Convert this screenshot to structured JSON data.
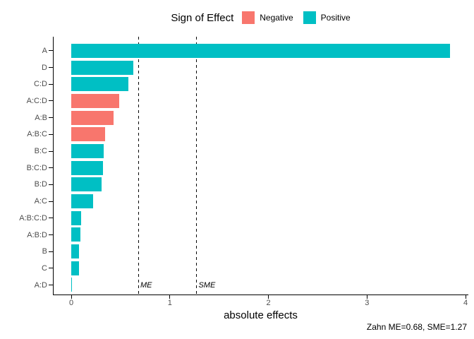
{
  "chart_data": {
    "type": "bar",
    "orientation": "horizontal",
    "title": "",
    "legend": {
      "title": "Sign of Effect",
      "position": "top",
      "entries": [
        {
          "label": "Negative",
          "color": "#F8766D"
        },
        {
          "label": "Positive",
          "color": "#00BFC4"
        }
      ]
    },
    "bars": [
      {
        "label": "A",
        "value": 3.84,
        "sign": "Positive"
      },
      {
        "label": "D",
        "value": 0.63,
        "sign": "Positive"
      },
      {
        "label": "C:D",
        "value": 0.58,
        "sign": "Positive"
      },
      {
        "label": "A:C:D",
        "value": 0.49,
        "sign": "Negative"
      },
      {
        "label": "A:B",
        "value": 0.43,
        "sign": "Negative"
      },
      {
        "label": "A:B:C",
        "value": 0.34,
        "sign": "Negative"
      },
      {
        "label": "B:C",
        "value": 0.33,
        "sign": "Positive"
      },
      {
        "label": "B:C:D",
        "value": 0.32,
        "sign": "Positive"
      },
      {
        "label": "B:D",
        "value": 0.31,
        "sign": "Positive"
      },
      {
        "label": "A:C",
        "value": 0.22,
        "sign": "Positive"
      },
      {
        "label": "A:B:C:D",
        "value": 0.1,
        "sign": "Positive"
      },
      {
        "label": "A:B:D",
        "value": 0.09,
        "sign": "Positive"
      },
      {
        "label": "B",
        "value": 0.08,
        "sign": "Positive"
      },
      {
        "label": "C",
        "value": 0.08,
        "sign": "Positive"
      },
      {
        "label": "A:D",
        "value": 0.01,
        "sign": "Positive"
      }
    ],
    "reference_lines": [
      {
        "label": "ME",
        "value": 0.68
      },
      {
        "label": "SME",
        "value": 1.27
      }
    ],
    "xlabel": "absolute effects",
    "x_ticks": [
      0,
      1,
      2,
      3,
      4
    ],
    "xlim": [
      0,
      4.03
    ],
    "grid": false,
    "background": "#FFFFFF",
    "caption": "Zahn ME=0.68, SME=1.27",
    "axis_text_color": "#4d4d4d",
    "axis_line_color": "#000000"
  }
}
